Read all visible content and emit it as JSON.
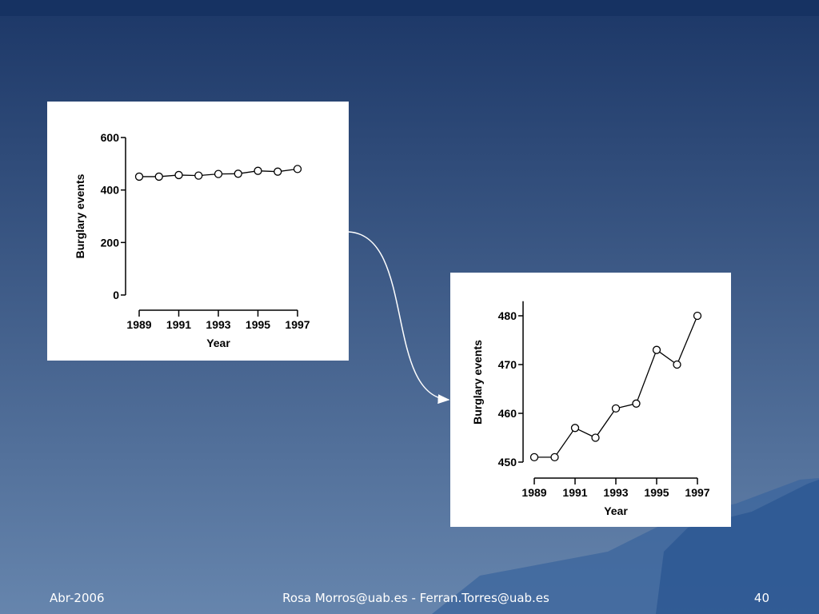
{
  "chart_data": [
    {
      "type": "line",
      "x_label": "Year",
      "y_label": "Burglary events",
      "x": [
        1989,
        1990,
        1991,
        1992,
        1993,
        1994,
        1995,
        1996,
        1997
      ],
      "values": [
        451,
        451,
        457,
        455,
        461,
        462,
        473,
        470,
        480
      ],
      "color": "#000000",
      "xlim": [
        1989,
        1997
      ],
      "xticks": [
        1989,
        1991,
        1993,
        1995,
        1997
      ],
      "ylim": [
        0,
        600
      ],
      "yticks": [
        0,
        200,
        400,
        600
      ]
    },
    {
      "type": "line",
      "x_label": "Year",
      "y_label": "Burglary events",
      "x": [
        1989,
        1990,
        1991,
        1992,
        1993,
        1994,
        1995,
        1996,
        1997
      ],
      "values": [
        451,
        451,
        457,
        455,
        461,
        462,
        473,
        470,
        480
      ],
      "color": "#000000",
      "xlim": [
        1989,
        1997
      ],
      "xticks": [
        1989,
        1991,
        1993,
        1995,
        1997
      ],
      "ylim": [
        450,
        483
      ],
      "yticks": [
        450,
        460,
        470,
        480
      ]
    }
  ],
  "footer": {
    "date": "Abr-2006",
    "authors": "Rosa Morros@uab.es - Ferran.Torres@uab.es",
    "page": "40"
  }
}
